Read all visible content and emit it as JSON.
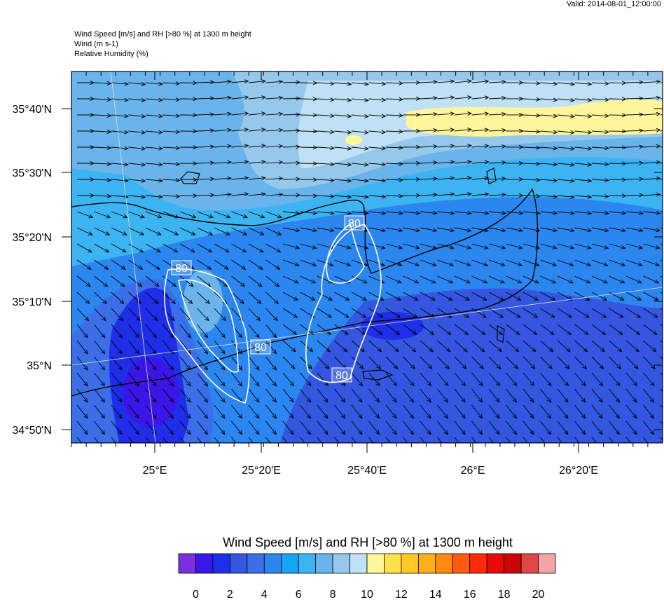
{
  "valid": "Valid: 2014-08-01_12:00:00",
  "header_lines": [
    "Wind Speed [m/s] and RH [>80 %] at 1300 m height",
    "Wind   (m s-1)",
    "Relative Humidity   (%)"
  ],
  "lat_labels": [
    "35°40'N",
    "35°30'N",
    "35°20'N",
    "35°10'N",
    "35°N",
    "34°50'N"
  ],
  "lon_labels": [
    "25°E",
    "25°20'E",
    "25°40'E",
    "26°E",
    "26°20'E"
  ],
  "contour_labels": [
    "80",
    "80",
    "80",
    "80"
  ],
  "colorbar": {
    "title": "Wind Speed [m/s] and RH [>80 %] at 1300 m height",
    "colors": [
      "#7b2fe0",
      "#3b16e8",
      "#1f2ee8",
      "#3456e0",
      "#3b6ee8",
      "#2b86f0",
      "#14a6f5",
      "#3cb4f2",
      "#6ab4ec",
      "#96c8ec",
      "#bfe0f5",
      "#fff59a",
      "#ffe14a",
      "#ffc822",
      "#ffaf1c",
      "#ff8a10",
      "#ff5a10",
      "#ff2a0a",
      "#e80808",
      "#c80808",
      "#e04848",
      "#f4a4a4"
    ],
    "labels": [
      "0",
      "2",
      "4",
      "6",
      "8",
      "10",
      "12",
      "14",
      "16",
      "18",
      "20"
    ]
  }
}
